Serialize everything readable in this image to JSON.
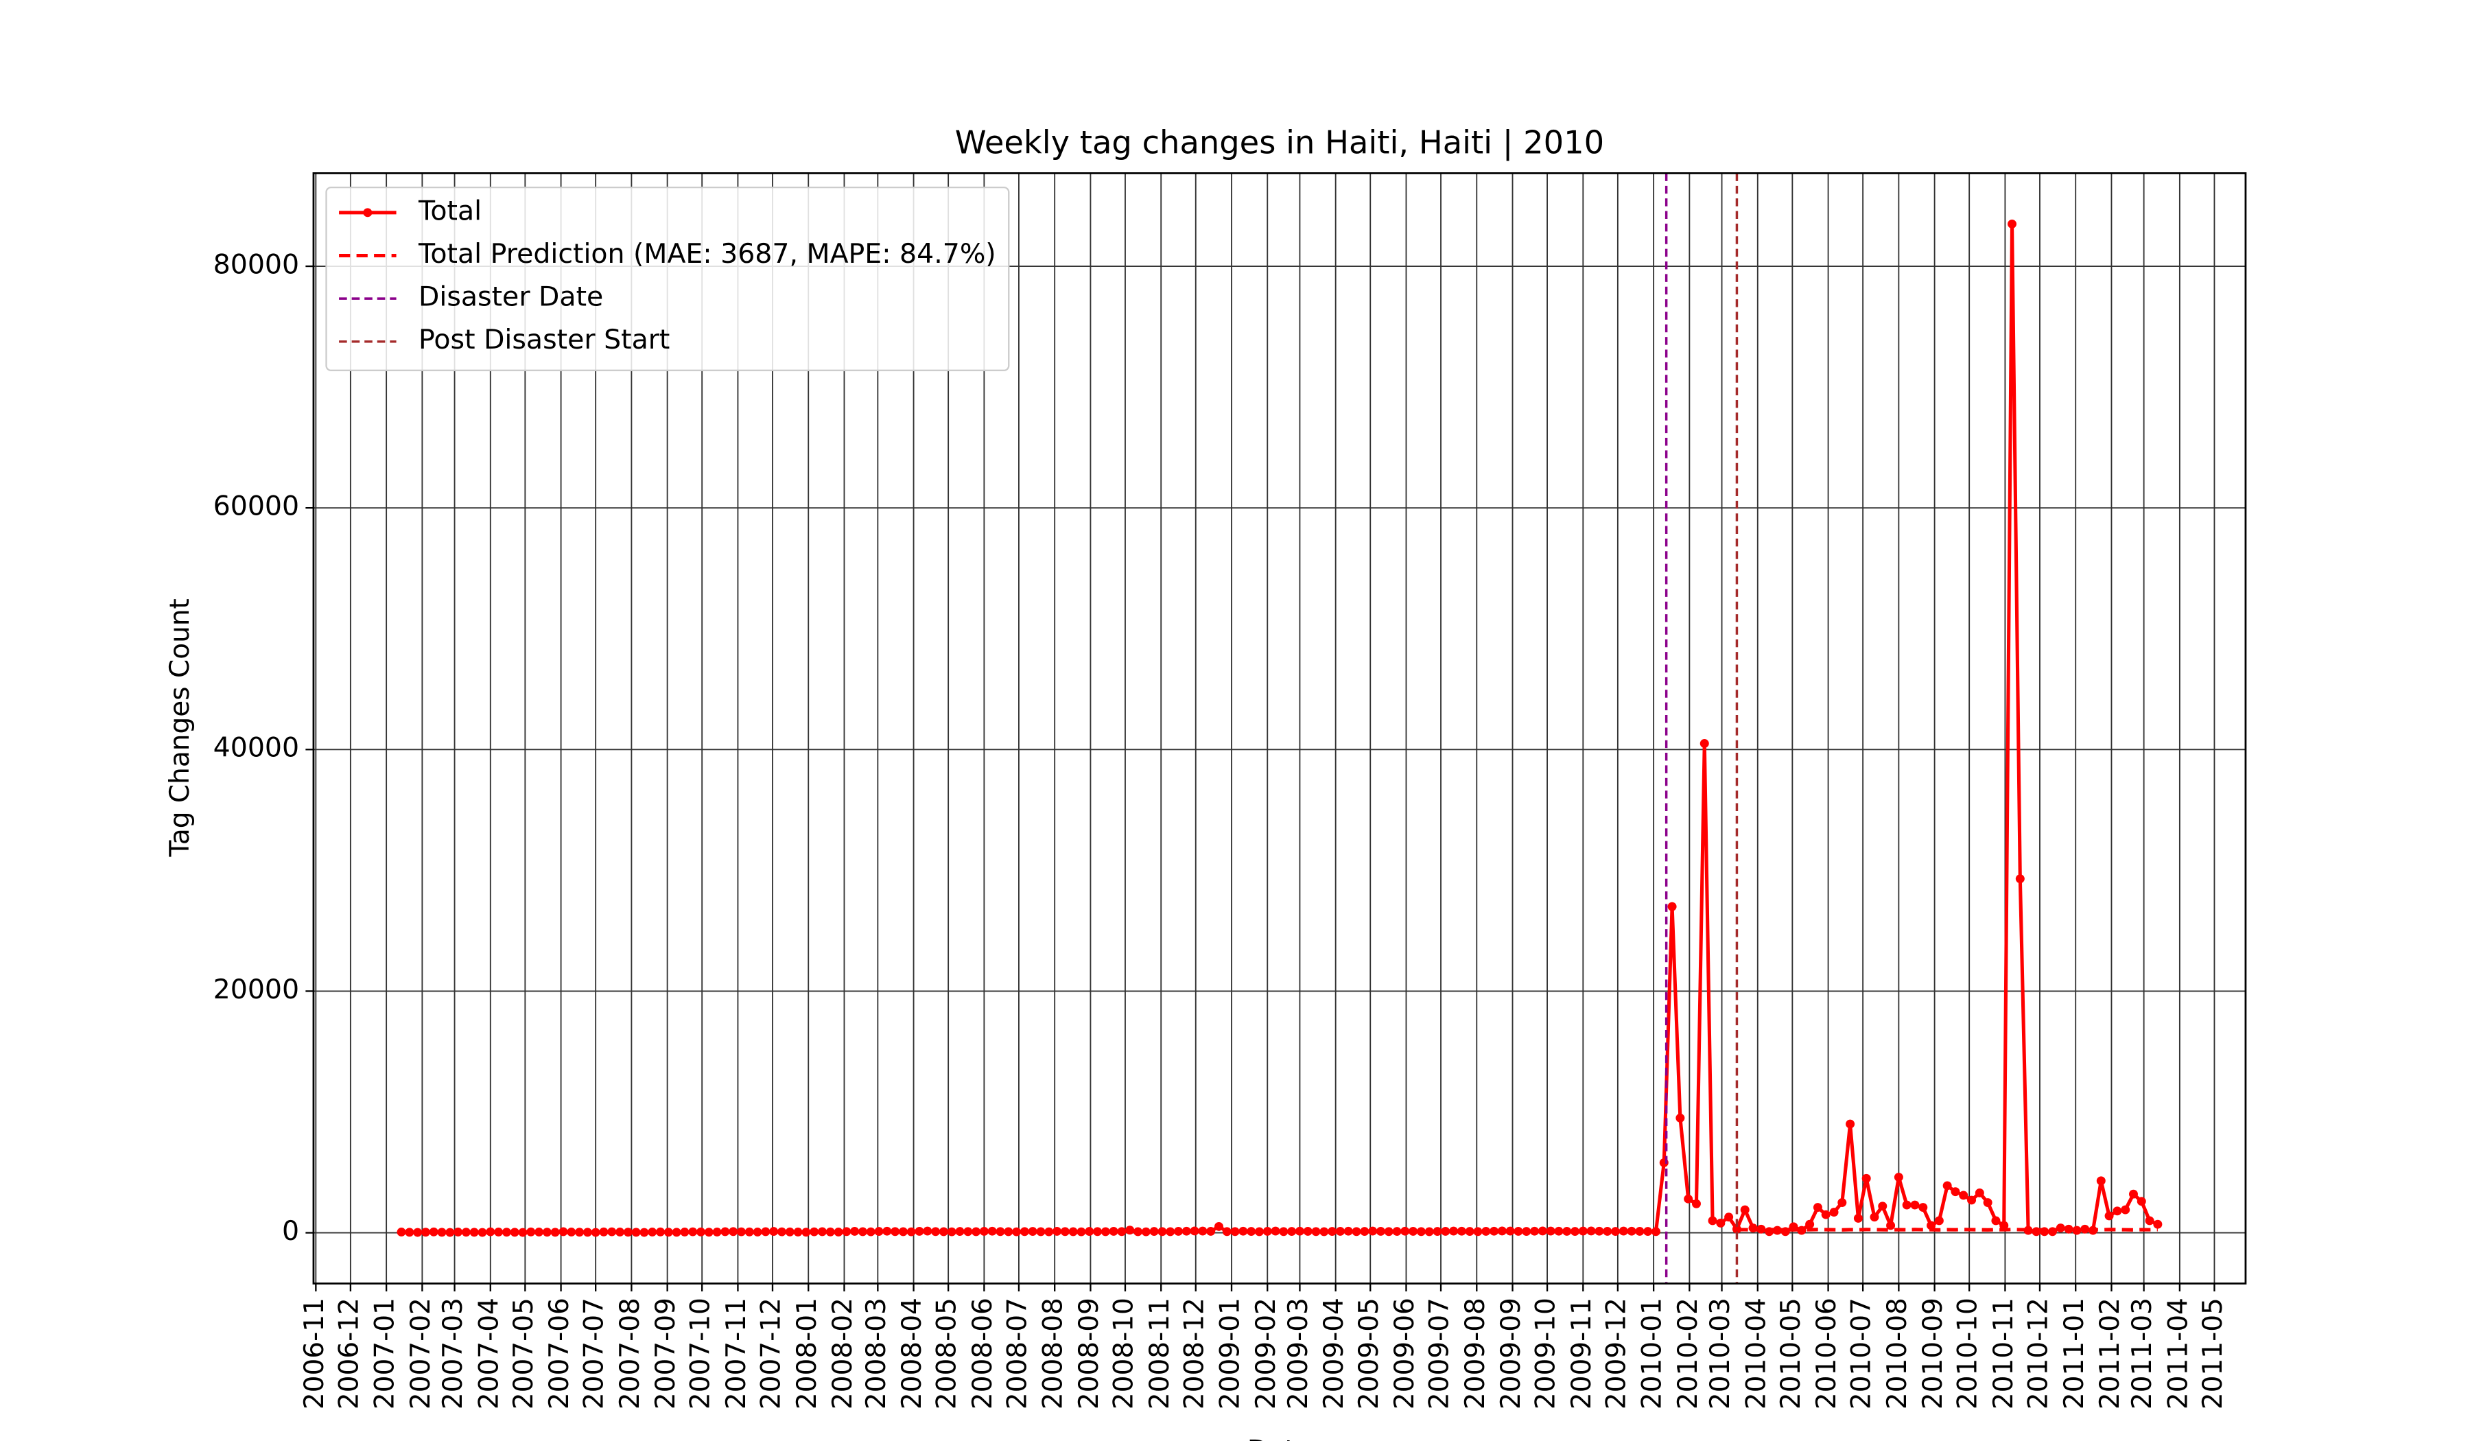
{
  "chart_data": {
    "type": "line",
    "title": "Weekly tag changes in Haiti, Haiti | 2010",
    "x_label": "Date",
    "y_label": "Tag Changes Count",
    "xlim": [
      "2006-10-30",
      "2011-05-28"
    ],
    "xticks": [
      "2006-11",
      "2006-12",
      "2007-01",
      "2007-02",
      "2007-03",
      "2007-04",
      "2007-05",
      "2007-06",
      "2007-07",
      "2007-08",
      "2007-09",
      "2007-10",
      "2007-11",
      "2007-12",
      "2008-01",
      "2008-02",
      "2008-03",
      "2008-04",
      "2008-05",
      "2008-06",
      "2008-07",
      "2008-08",
      "2008-09",
      "2008-10",
      "2008-11",
      "2008-12",
      "2009-01",
      "2009-02",
      "2009-03",
      "2009-04",
      "2009-05",
      "2009-06",
      "2009-07",
      "2009-08",
      "2009-09",
      "2009-10",
      "2009-11",
      "2009-12",
      "2010-01",
      "2010-02",
      "2010-03",
      "2010-04",
      "2010-05",
      "2010-06",
      "2010-07",
      "2010-08",
      "2010-09",
      "2010-10",
      "2010-11",
      "2010-12",
      "2011-01",
      "2011-02",
      "2011-03",
      "2011-04",
      "2011-05"
    ],
    "ylim": [
      -4200,
      87700
    ],
    "yticks": [
      0,
      20000,
      40000,
      60000,
      80000
    ],
    "grid": true,
    "legend": "upper left",
    "series": [
      {
        "name": "Total",
        "color": "red",
        "style": "solid-marker",
        "x": [
          "2007-01-14",
          "2007-01-21",
          "2007-01-28",
          "2007-02-04",
          "2007-02-11",
          "2007-02-18",
          "2007-02-25",
          "2007-03-04",
          "2007-03-11",
          "2007-03-18",
          "2007-03-25",
          "2007-04-01",
          "2007-04-08",
          "2007-04-15",
          "2007-04-22",
          "2007-04-29",
          "2007-05-06",
          "2007-05-13",
          "2007-05-20",
          "2007-05-27",
          "2007-06-03",
          "2007-06-10",
          "2007-06-17",
          "2007-06-24",
          "2007-07-01",
          "2007-07-08",
          "2007-07-15",
          "2007-07-22",
          "2007-07-29",
          "2007-08-05",
          "2007-08-12",
          "2007-08-19",
          "2007-08-26",
          "2007-09-02",
          "2007-09-09",
          "2007-09-16",
          "2007-09-23",
          "2007-09-30",
          "2007-10-07",
          "2007-10-14",
          "2007-10-21",
          "2007-10-28",
          "2007-11-04",
          "2007-11-11",
          "2007-11-18",
          "2007-11-25",
          "2007-12-02",
          "2007-12-09",
          "2007-12-16",
          "2007-12-23",
          "2007-12-30",
          "2008-01-06",
          "2008-01-13",
          "2008-01-20",
          "2008-01-27",
          "2008-02-03",
          "2008-02-10",
          "2008-02-17",
          "2008-02-24",
          "2008-03-02",
          "2008-03-09",
          "2008-03-16",
          "2008-03-23",
          "2008-03-30",
          "2008-04-06",
          "2008-04-13",
          "2008-04-20",
          "2008-04-27",
          "2008-05-04",
          "2008-05-11",
          "2008-05-18",
          "2008-05-25",
          "2008-06-01",
          "2008-06-08",
          "2008-06-15",
          "2008-06-22",
          "2008-06-29",
          "2008-07-06",
          "2008-07-13",
          "2008-07-20",
          "2008-07-27",
          "2008-08-03",
          "2008-08-10",
          "2008-08-17",
          "2008-08-24",
          "2008-08-31",
          "2008-09-07",
          "2008-09-14",
          "2008-09-21",
          "2008-09-28",
          "2008-10-05",
          "2008-10-12",
          "2008-10-19",
          "2008-10-26",
          "2008-11-02",
          "2008-11-09",
          "2008-11-16",
          "2008-11-23",
          "2008-11-30",
          "2008-12-07",
          "2008-12-14",
          "2008-12-21",
          "2008-12-28",
          "2009-01-04",
          "2009-01-11",
          "2009-01-18",
          "2009-01-25",
          "2009-02-01",
          "2009-02-08",
          "2009-02-15",
          "2009-02-22",
          "2009-03-01",
          "2009-03-08",
          "2009-03-15",
          "2009-03-22",
          "2009-03-29",
          "2009-04-05",
          "2009-04-12",
          "2009-04-19",
          "2009-04-26",
          "2009-05-03",
          "2009-05-10",
          "2009-05-17",
          "2009-05-24",
          "2009-05-31",
          "2009-06-07",
          "2009-06-14",
          "2009-06-21",
          "2009-06-28",
          "2009-07-05",
          "2009-07-12",
          "2009-07-19",
          "2009-07-26",
          "2009-08-02",
          "2009-08-09",
          "2009-08-16",
          "2009-08-23",
          "2009-08-30",
          "2009-09-06",
          "2009-09-13",
          "2009-09-20",
          "2009-09-27",
          "2009-10-04",
          "2009-10-11",
          "2009-10-18",
          "2009-10-25",
          "2009-11-01",
          "2009-11-08",
          "2009-11-15",
          "2009-11-22",
          "2009-11-29",
          "2009-12-06",
          "2009-12-13",
          "2009-12-20",
          "2009-12-27",
          "2010-01-03",
          "2010-01-10",
          "2010-01-17",
          "2010-01-24",
          "2010-01-31",
          "2010-02-07",
          "2010-02-14",
          "2010-02-21",
          "2010-02-28",
          "2010-03-07",
          "2010-03-14",
          "2010-03-21",
          "2010-03-28",
          "2010-04-04",
          "2010-04-11",
          "2010-04-18",
          "2010-04-25",
          "2010-05-02",
          "2010-05-09",
          "2010-05-16",
          "2010-05-23",
          "2010-05-30",
          "2010-06-06",
          "2010-06-13",
          "2010-06-20",
          "2010-06-27",
          "2010-07-04",
          "2010-07-11",
          "2010-07-18",
          "2010-07-25",
          "2010-08-01",
          "2010-08-08",
          "2010-08-15",
          "2010-08-22",
          "2010-08-29",
          "2010-09-05",
          "2010-09-12",
          "2010-09-19",
          "2010-09-26",
          "2010-10-03",
          "2010-10-10",
          "2010-10-17",
          "2010-10-24",
          "2010-10-31",
          "2010-11-07",
          "2010-11-14",
          "2010-11-21",
          "2010-11-28",
          "2010-12-05",
          "2010-12-12",
          "2010-12-19",
          "2010-12-26",
          "2011-01-02",
          "2011-01-09",
          "2011-01-16",
          "2011-01-23",
          "2011-01-30",
          "2011-02-06",
          "2011-02-13",
          "2011-02-20",
          "2011-02-27",
          "2011-03-06",
          "2011-03-13"
        ],
        "values": [
          60,
          40,
          30,
          50,
          70,
          40,
          30,
          60,
          50,
          40,
          30,
          80,
          60,
          50,
          40,
          30,
          70,
          60,
          50,
          40,
          90,
          60,
          50,
          40,
          30,
          70,
          80,
          60,
          50,
          40,
          30,
          60,
          70,
          50,
          40,
          60,
          80,
          70,
          50,
          60,
          90,
          100,
          80,
          70,
          60,
          90,
          110,
          80,
          70,
          60,
          50,
          80,
          90,
          70,
          60,
          100,
          120,
          90,
          80,
          110,
          130,
          100,
          90,
          80,
          120,
          140,
          100,
          90,
          80,
          110,
          100,
          90,
          120,
          130,
          100,
          90,
          80,
          100,
          110,
          90,
          80,
          120,
          100,
          90,
          80,
          110,
          100,
          90,
          120,
          100,
          220,
          90,
          80,
          110,
          100,
          90,
          120,
          130,
          150,
          140,
          120,
          520,
          100,
          100,
          130,
          110,
          90,
          120,
          140,
          100,
          110,
          130,
          120,
          100,
          90,
          110,
          120,
          130,
          100,
          110,
          140,
          120,
          100,
          110,
          130,
          120,
          100,
          90,
          110,
          120,
          140,
          130,
          110,
          100,
          120,
          130,
          150,
          140,
          120,
          110,
          130,
          150,
          140,
          130,
          120,
          110,
          140,
          150,
          130,
          120,
          110,
          140,
          130,
          120,
          110,
          100,
          5800,
          27000,
          9500,
          2800,
          2400,
          40500,
          1000,
          800,
          1300,
          300,
          1900,
          400,
          300,
          100,
          200,
          100,
          500,
          200,
          700,
          2100,
          1500,
          1700,
          2500,
          9000,
          1200,
          4500,
          1300,
          2200,
          600,
          4600,
          2300,
          2300,
          2100,
          600,
          1000,
          3900,
          3400,
          3100,
          2700,
          3300,
          2500,
          1000,
          600,
          83500,
          29300,
          200,
          100,
          100,
          100,
          400,
          300,
          200,
          300,
          200,
          4300,
          1400,
          1800,
          1900,
          3200,
          2600,
          1000,
          700
        ]
      },
      {
        "name": "Total Prediction (MAE: 3687, MAPE: 84.7%)",
        "color": "red",
        "style": "dashed",
        "x": [
          "2010-03-14",
          "2010-03-21",
          "2010-03-28",
          "2010-04-04",
          "2010-04-11",
          "2010-04-18",
          "2010-04-25",
          "2010-05-02",
          "2010-05-09",
          "2010-05-16",
          "2010-05-23",
          "2010-05-30",
          "2010-06-06",
          "2010-06-13",
          "2010-06-20",
          "2010-06-27",
          "2010-07-04",
          "2010-07-11",
          "2010-07-18",
          "2010-07-25",
          "2010-08-01",
          "2010-08-08",
          "2010-08-15",
          "2010-08-22",
          "2010-08-29",
          "2010-09-05",
          "2010-09-12",
          "2010-09-19",
          "2010-09-26",
          "2010-10-03",
          "2010-10-10",
          "2010-10-17",
          "2010-10-24",
          "2010-10-31",
          "2010-11-07",
          "2010-11-14",
          "2010-11-21",
          "2010-11-28",
          "2010-12-05",
          "2010-12-12",
          "2010-12-19",
          "2010-12-26",
          "2011-01-02",
          "2011-01-09",
          "2011-01-16",
          "2011-01-23",
          "2011-01-30",
          "2011-02-06",
          "2011-02-13",
          "2011-02-20",
          "2011-02-27",
          "2011-03-06",
          "2011-03-13"
        ],
        "values": [
          250,
          260,
          240,
          250,
          270,
          260,
          250,
          240,
          260,
          250,
          270,
          260,
          250,
          240,
          260,
          250,
          270,
          260,
          250,
          240,
          260,
          250,
          270,
          260,
          250,
          240,
          260,
          250,
          270,
          260,
          250,
          240,
          260,
          250,
          270,
          260,
          250,
          240,
          260,
          250,
          270,
          260,
          250,
          240,
          260,
          250,
          270,
          260,
          250,
          240,
          260,
          250,
          260
        ]
      }
    ],
    "vlines": [
      {
        "name": "Disaster Date",
        "x": "2010-01-12",
        "color": "#8b008b"
      },
      {
        "name": "Post Disaster Start",
        "x": "2010-03-14",
        "color": "#a52a2a"
      }
    ]
  }
}
